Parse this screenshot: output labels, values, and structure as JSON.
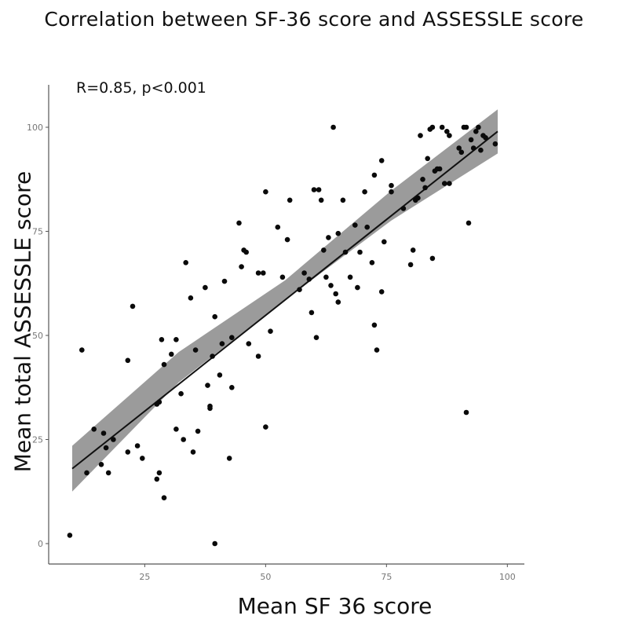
{
  "chart_data": {
    "type": "scatter",
    "title": "Correlation between SF-36 score and ASSESSLE score",
    "xlabel": "Mean SF 36 score",
    "ylabel": "Mean total ASSESSLE score",
    "annotation": "R=0.85, p<0.001",
    "xlim": [
      6,
      102
    ],
    "ylim": [
      -5,
      108
    ],
    "xticks": [
      25,
      50,
      75,
      100
    ],
    "yticks": [
      0,
      25,
      50,
      75,
      100
    ],
    "xtick_labels": [
      "25",
      "50",
      "75",
      "100"
    ],
    "ytick_labels": [
      "0",
      "25",
      "50",
      "75",
      "100"
    ],
    "grid": false,
    "fit_line": {
      "x_start": 10,
      "y_start": 18,
      "x_end": 98,
      "y_end": 99
    },
    "confidence_band": {
      "x": [
        10,
        32,
        54,
        76,
        98
      ],
      "lower": [
        12.5,
        38.7,
        58.5,
        77.6,
        93.7
      ],
      "upper": [
        23.5,
        46.0,
        63.2,
        84.8,
        104.3
      ]
    },
    "points": [
      [
        9.5,
        2
      ],
      [
        12,
        46.5
      ],
      [
        13,
        17
      ],
      [
        14.5,
        27.5
      ],
      [
        16,
        19
      ],
      [
        16.5,
        26.5
      ],
      [
        17,
        23
      ],
      [
        17.5,
        17
      ],
      [
        18.5,
        25
      ],
      [
        21.5,
        22
      ],
      [
        21.5,
        44
      ],
      [
        22.5,
        57
      ],
      [
        23.5,
        23.5
      ],
      [
        24.5,
        20.5
      ],
      [
        27.5,
        33.5
      ],
      [
        27.5,
        15.5
      ],
      [
        28,
        34
      ],
      [
        28,
        17
      ],
      [
        28.5,
        49
      ],
      [
        29,
        43
      ],
      [
        29,
        11
      ],
      [
        30.5,
        45.5
      ],
      [
        31.5,
        49
      ],
      [
        31.5,
        27.5
      ],
      [
        32.5,
        36
      ],
      [
        33,
        25
      ],
      [
        33.5,
        67.5
      ],
      [
        34.5,
        59
      ],
      [
        35,
        22
      ],
      [
        35.5,
        46.5
      ],
      [
        36,
        27
      ],
      [
        37.5,
        61.5
      ],
      [
        38,
        38
      ],
      [
        38.5,
        33
      ],
      [
        38.5,
        32.5
      ],
      [
        39,
        45
      ],
      [
        39.5,
        0
      ],
      [
        39.5,
        54.5
      ],
      [
        40.5,
        40.5
      ],
      [
        41,
        48
      ],
      [
        41.5,
        63
      ],
      [
        42.5,
        20.5
      ],
      [
        43,
        37.5
      ],
      [
        43,
        49.5
      ],
      [
        44.5,
        77
      ],
      [
        45,
        66.5
      ],
      [
        45.5,
        70.5
      ],
      [
        46,
        70
      ],
      [
        46.5,
        48
      ],
      [
        48.5,
        45
      ],
      [
        48.5,
        65
      ],
      [
        49.5,
        65
      ],
      [
        50,
        84.5
      ],
      [
        50,
        28
      ],
      [
        51,
        51
      ],
      [
        52.5,
        76
      ],
      [
        53.5,
        64
      ],
      [
        54.5,
        73
      ],
      [
        55,
        82.5
      ],
      [
        57,
        61
      ],
      [
        58,
        65
      ],
      [
        59,
        63.5
      ],
      [
        59.5,
        55.5
      ],
      [
        60,
        85
      ],
      [
        60.5,
        49.5
      ],
      [
        61,
        85
      ],
      [
        61.5,
        82.5
      ],
      [
        62,
        70.5
      ],
      [
        62.5,
        64
      ],
      [
        63,
        73.5
      ],
      [
        63.5,
        62
      ],
      [
        64,
        100
      ],
      [
        64.5,
        60
      ],
      [
        65,
        58
      ],
      [
        65,
        74.5
      ],
      [
        66,
        82.5
      ],
      [
        66.5,
        70
      ],
      [
        67.5,
        64
      ],
      [
        68.5,
        76.5
      ],
      [
        69,
        61.5
      ],
      [
        69.5,
        70
      ],
      [
        70.5,
        84.5
      ],
      [
        71,
        76
      ],
      [
        72,
        67.5
      ],
      [
        72.5,
        88.5
      ],
      [
        72.5,
        52.5
      ],
      [
        73,
        46.5
      ],
      [
        74,
        92
      ],
      [
        74,
        60.5
      ],
      [
        74.5,
        72.5
      ],
      [
        76,
        84.5
      ],
      [
        76,
        86
      ],
      [
        78.5,
        80.5
      ],
      [
        80,
        67
      ],
      [
        80.5,
        70.5
      ],
      [
        81,
        82.5
      ],
      [
        81.5,
        83
      ],
      [
        82,
        98
      ],
      [
        82.5,
        87.5
      ],
      [
        83,
        85.5
      ],
      [
        83.5,
        92.5
      ],
      [
        84,
        99.5
      ],
      [
        84.5,
        68.5
      ],
      [
        84.5,
        100
      ],
      [
        85,
        89.5
      ],
      [
        85.5,
        90
      ],
      [
        86,
        90
      ],
      [
        86.5,
        100
      ],
      [
        87,
        86.5
      ],
      [
        87.5,
        99
      ],
      [
        88,
        86.5
      ],
      [
        88,
        98
      ],
      [
        90,
        95
      ],
      [
        90.5,
        94
      ],
      [
        91,
        100
      ],
      [
        91.5,
        100
      ],
      [
        91.5,
        31.5
      ],
      [
        92,
        77
      ],
      [
        92.5,
        97
      ],
      [
        93,
        95
      ],
      [
        93.5,
        99
      ],
      [
        94,
        100
      ],
      [
        94.5,
        94.5
      ],
      [
        95,
        98
      ],
      [
        95.5,
        97.5
      ],
      [
        97.5,
        96
      ]
    ]
  }
}
